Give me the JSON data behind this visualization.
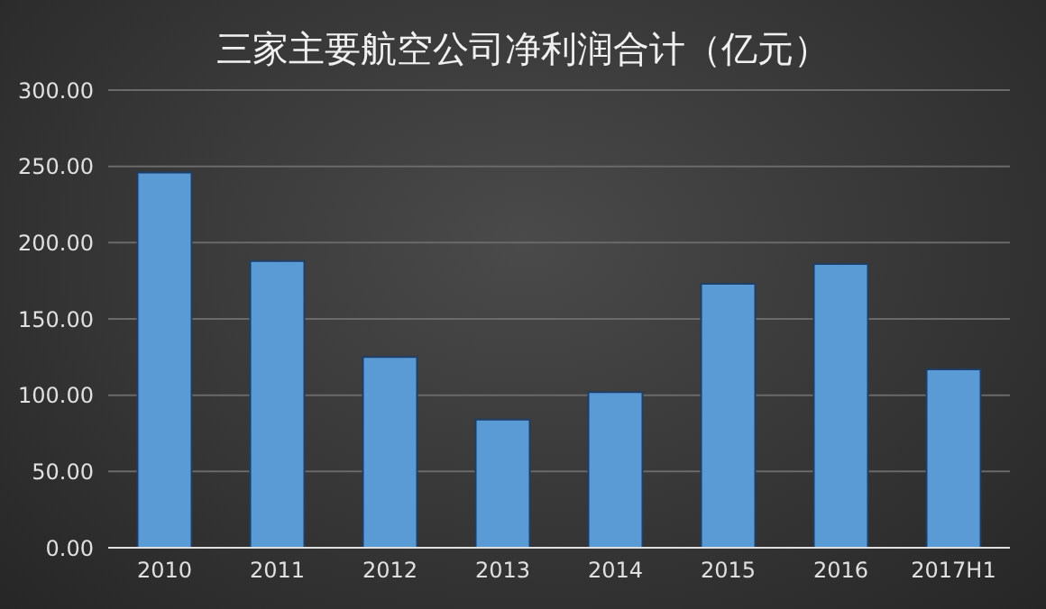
{
  "chart_data": {
    "type": "bar",
    "title": "三家主要航空公司净利润合计（亿元）",
    "categories": [
      "2010",
      "2011",
      "2012",
      "2013",
      "2014",
      "2015",
      "2016",
      "2017H1"
    ],
    "values": [
      246,
      188,
      125,
      84,
      102,
      173,
      186,
      117
    ],
    "color": "#5b9bd5",
    "ylim": [
      0,
      300
    ],
    "yticks": [
      {
        "value": 0,
        "label": "0.00"
      },
      {
        "value": 50,
        "label": "50.00"
      },
      {
        "value": 100,
        "label": "100.00"
      },
      {
        "value": 150,
        "label": "150.00"
      },
      {
        "value": 200,
        "label": "200.00"
      },
      {
        "value": 250,
        "label": "250.00"
      },
      {
        "value": 300,
        "label": "300.00"
      }
    ],
    "grid": "y",
    "legend": false
  }
}
